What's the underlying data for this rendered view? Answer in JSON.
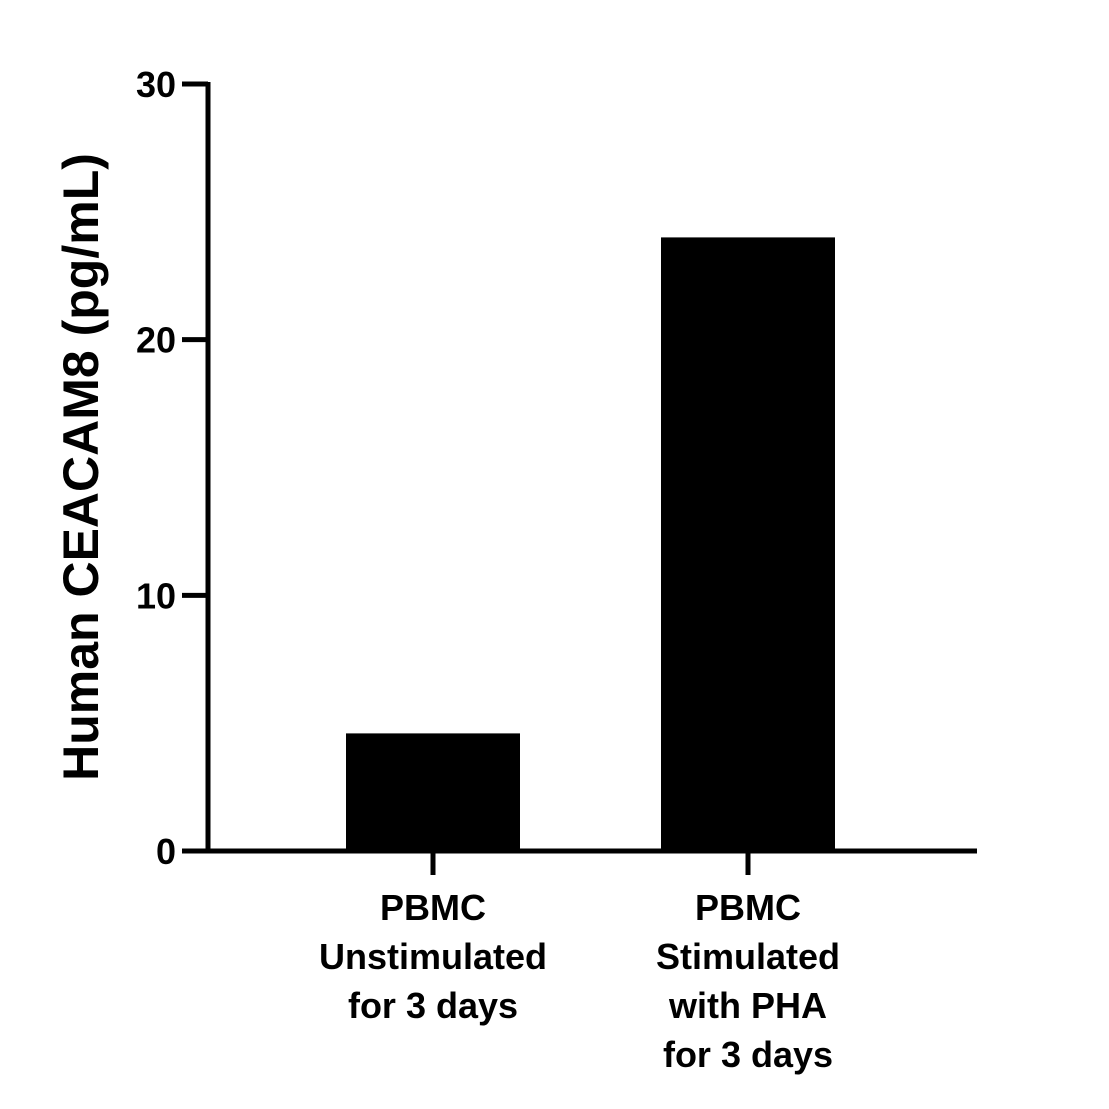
{
  "chart_data": {
    "type": "bar",
    "title": "",
    "xlabel": "",
    "ylabel": "Human CEACAM8 (pg/mL)",
    "ylim": [
      0,
      30
    ],
    "yticks": [
      0,
      10,
      20,
      30
    ],
    "grid": false,
    "categories": [
      [
        "PBMC",
        "Unstimulated",
        "for 3 days"
      ],
      [
        "PBMC",
        "Stimulated",
        "with PHA",
        "for 3 days"
      ]
    ],
    "values": [
      4.6,
      24
    ],
    "colors": {
      "bar": "#000000",
      "axis": "#000000"
    }
  }
}
